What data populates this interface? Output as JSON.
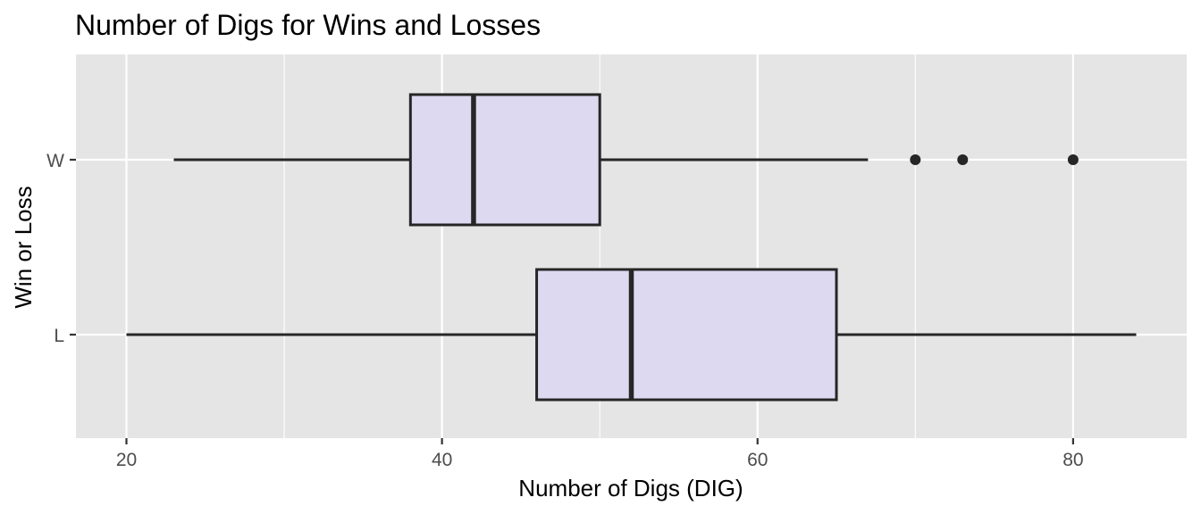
{
  "chart_data": {
    "type": "boxplot",
    "orientation": "horizontal",
    "title": "Number of Digs for Wins and Losses",
    "xlabel": "Number of Digs (DIG)",
    "ylabel": "Win or Loss",
    "xlim": [
      16.8,
      87.2
    ],
    "x_ticks": [
      20,
      40,
      60,
      80
    ],
    "x_tick_labels": [
      "20",
      "40",
      "60",
      "80"
    ],
    "grid": true,
    "legend": "none",
    "colors": {
      "panel_background": "#e5e5e5",
      "grid_line": "#ffffff",
      "box_fill": "#dcd9f1",
      "box_line": "#262626",
      "outlier": "#262626"
    },
    "categories": [
      "L",
      "W"
    ],
    "series": [
      {
        "category": "W",
        "min": 23,
        "q1": 38,
        "median": 42,
        "q3": 50,
        "max": 67,
        "outliers": [
          70,
          73,
          80
        ]
      },
      {
        "category": "L",
        "min": 20,
        "q1": 46,
        "median": 52,
        "q3": 65,
        "max": 84,
        "outliers": []
      }
    ]
  }
}
